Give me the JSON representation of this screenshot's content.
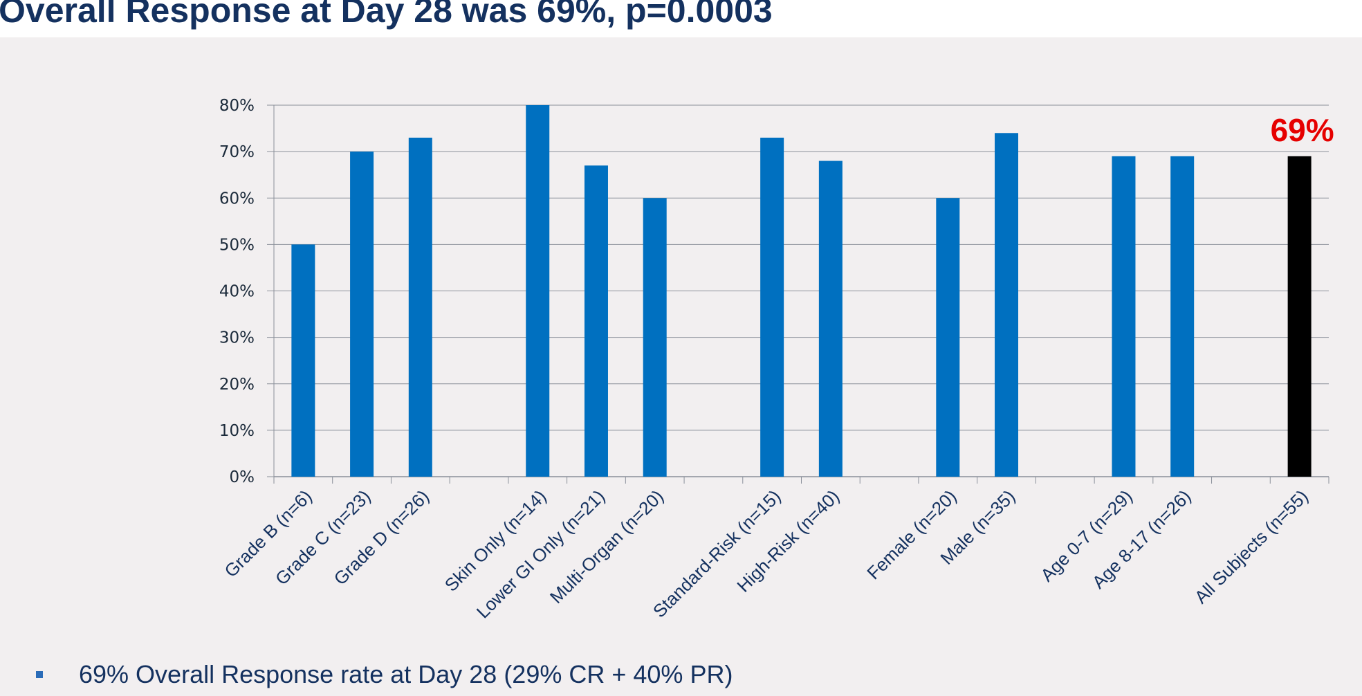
{
  "slide": {
    "title": "Overall Response at Day 28 was 69%, p=0.0003",
    "bullet": "69% Overall Response rate at Day 28 (29% CR + 40% PR)"
  },
  "colors": {
    "bar": "#0070c0",
    "highlight_bar": "#000000",
    "callout": "#e60000",
    "title": "#14315f"
  },
  "chart_data": {
    "type": "bar",
    "title": "",
    "xlabel": "",
    "ylabel": "",
    "ylim": [
      0,
      80
    ],
    "yticks": [
      "0%",
      "10%",
      "20%",
      "30%",
      "40%",
      "50%",
      "60%",
      "70%",
      "80%"
    ],
    "grid": true,
    "categories": [
      "Grade B (n=6)",
      "Grade C (n=23)",
      "Grade D (n=26)",
      "",
      "Skin Only (n=14)",
      "Lower GI Only (n=21)",
      "Multi-Organ (n=20)",
      "",
      "Standard-Risk (n=15)",
      "High-Risk (n=40)",
      "",
      "Female (n=20)",
      "Male (n=35)",
      "",
      "Age 0-7 (n=29)",
      "Age 8-17 (n=26)",
      "",
      "All Subjects (n=55)"
    ],
    "values": [
      50,
      70,
      73,
      null,
      80,
      67,
      60,
      null,
      73,
      68,
      null,
      60,
      74,
      null,
      69,
      69,
      null,
      69
    ],
    "highlight_index": 17,
    "annotations": [
      {
        "category": "All Subjects (n=55)",
        "text": "69%"
      }
    ]
  }
}
